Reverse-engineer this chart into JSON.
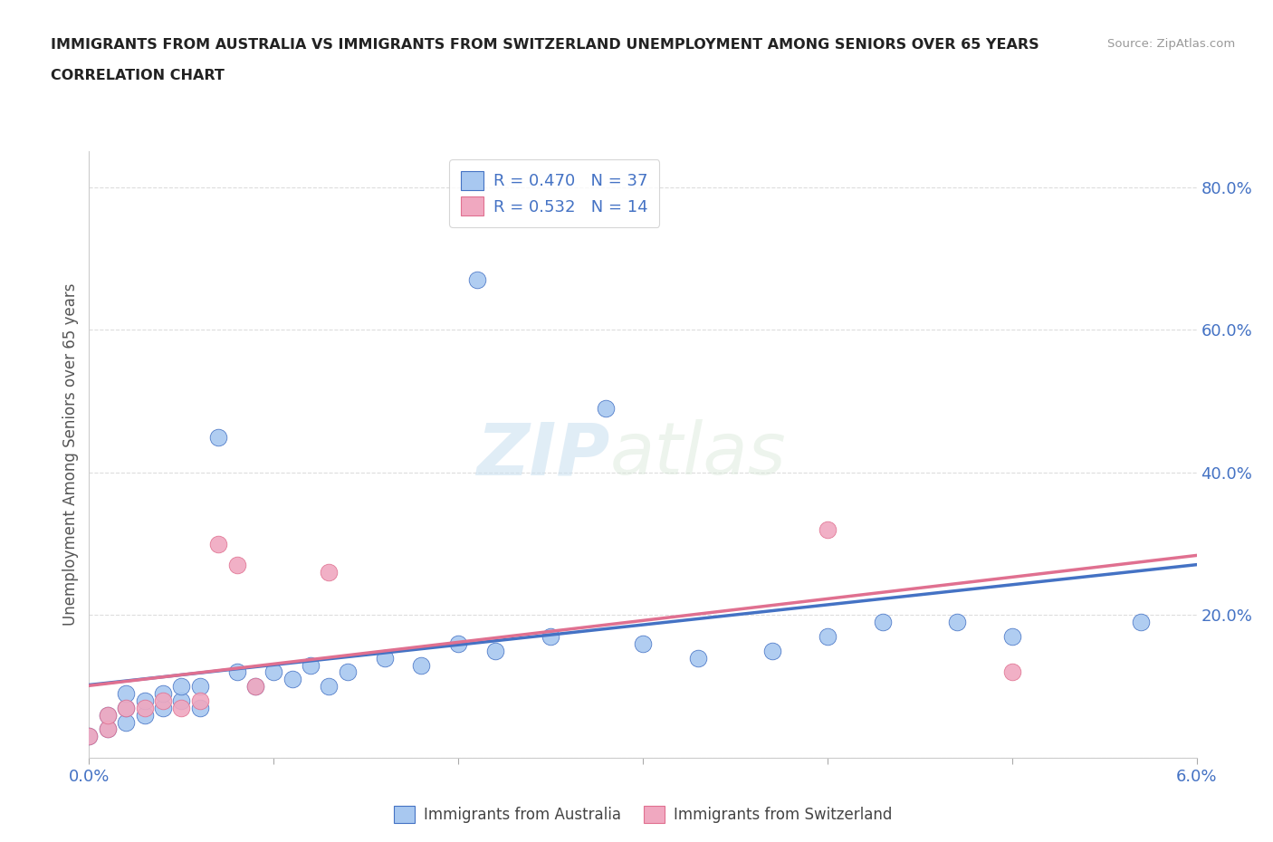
{
  "title_line1": "IMMIGRANTS FROM AUSTRALIA VS IMMIGRANTS FROM SWITZERLAND UNEMPLOYMENT AMONG SENIORS OVER 65 YEARS",
  "title_line2": "CORRELATION CHART",
  "source": "Source: ZipAtlas.com",
  "ylabel": "Unemployment Among Seniors over 65 years",
  "xlim": [
    0.0,
    0.06
  ],
  "ylim": [
    0.0,
    0.85
  ],
  "xticks": [
    0.0,
    0.01,
    0.02,
    0.03,
    0.04,
    0.05,
    0.06
  ],
  "xticklabels": [
    "0.0%",
    "",
    "",
    "",
    "",
    "",
    "6.0%"
  ],
  "yticks": [
    0.0,
    0.2,
    0.4,
    0.6,
    0.8
  ],
  "yticklabels_right": [
    "",
    "20.0%",
    "40.0%",
    "60.0%",
    "80.0%"
  ],
  "legend_r1": "R = 0.470",
  "legend_n1": "N = 37",
  "legend_r2": "R = 0.532",
  "legend_n2": "N = 14",
  "color_australia": "#a8c8f0",
  "color_switzerland": "#f0a8c0",
  "line_color_australia": "#4472c4",
  "line_color_switzerland": "#e07090",
  "australia_x": [
    0.0,
    0.001,
    0.001,
    0.002,
    0.002,
    0.002,
    0.003,
    0.003,
    0.004,
    0.004,
    0.005,
    0.005,
    0.006,
    0.006,
    0.007,
    0.008,
    0.009,
    0.01,
    0.011,
    0.012,
    0.013,
    0.014,
    0.016,
    0.018,
    0.02,
    0.021,
    0.022,
    0.025,
    0.028,
    0.03,
    0.033,
    0.037,
    0.04,
    0.043,
    0.047,
    0.05,
    0.057
  ],
  "australia_y": [
    0.03,
    0.04,
    0.06,
    0.05,
    0.07,
    0.09,
    0.06,
    0.08,
    0.07,
    0.09,
    0.08,
    0.1,
    0.07,
    0.1,
    0.45,
    0.12,
    0.1,
    0.12,
    0.11,
    0.13,
    0.1,
    0.12,
    0.14,
    0.13,
    0.16,
    0.67,
    0.15,
    0.17,
    0.49,
    0.16,
    0.14,
    0.15,
    0.17,
    0.19,
    0.19,
    0.17,
    0.19
  ],
  "switzerland_x": [
    0.0,
    0.001,
    0.001,
    0.002,
    0.003,
    0.004,
    0.005,
    0.006,
    0.007,
    0.008,
    0.009,
    0.013,
    0.04,
    0.05
  ],
  "switzerland_y": [
    0.03,
    0.04,
    0.06,
    0.07,
    0.07,
    0.08,
    0.07,
    0.08,
    0.3,
    0.27,
    0.1,
    0.26,
    0.32,
    0.12
  ],
  "watermark_zip": "ZIP",
  "watermark_atlas": "atlas",
  "background_color": "#ffffff",
  "grid_color": "#dddddd",
  "title_color": "#222222",
  "axis_tick_color": "#4472c4",
  "ylabel_color": "#555555"
}
